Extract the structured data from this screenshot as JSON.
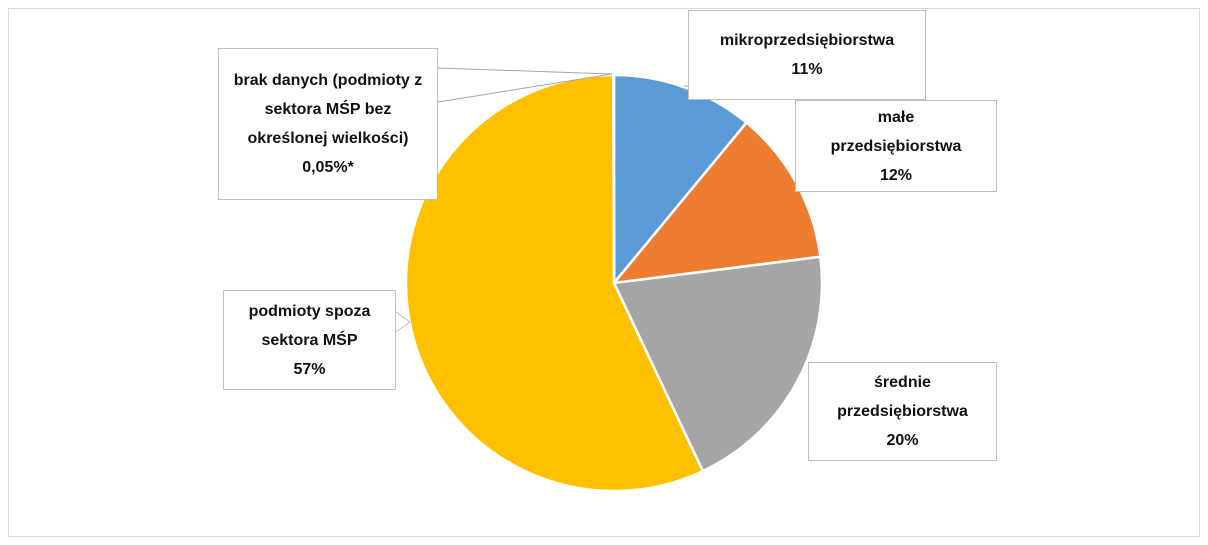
{
  "chart_data": {
    "type": "pie",
    "categories": [
      "mikroprzedsiębiorstwa",
      "małe przedsiębiorstwa",
      "średnie przedsiębiorstwa",
      "podmioty spoza sektora MŚP",
      "brak danych (podmioty z sektora MŚP bez określonej wielkości)"
    ],
    "values": [
      11,
      12,
      20,
      57,
      0.05
    ],
    "value_labels": [
      "11%",
      "12%",
      "20%",
      "57%",
      "0,05%*"
    ],
    "colors": [
      "#5b9bd5",
      "#ed7d31",
      "#a5a5a5",
      "#ffc000",
      "#4472c4"
    ]
  }
}
